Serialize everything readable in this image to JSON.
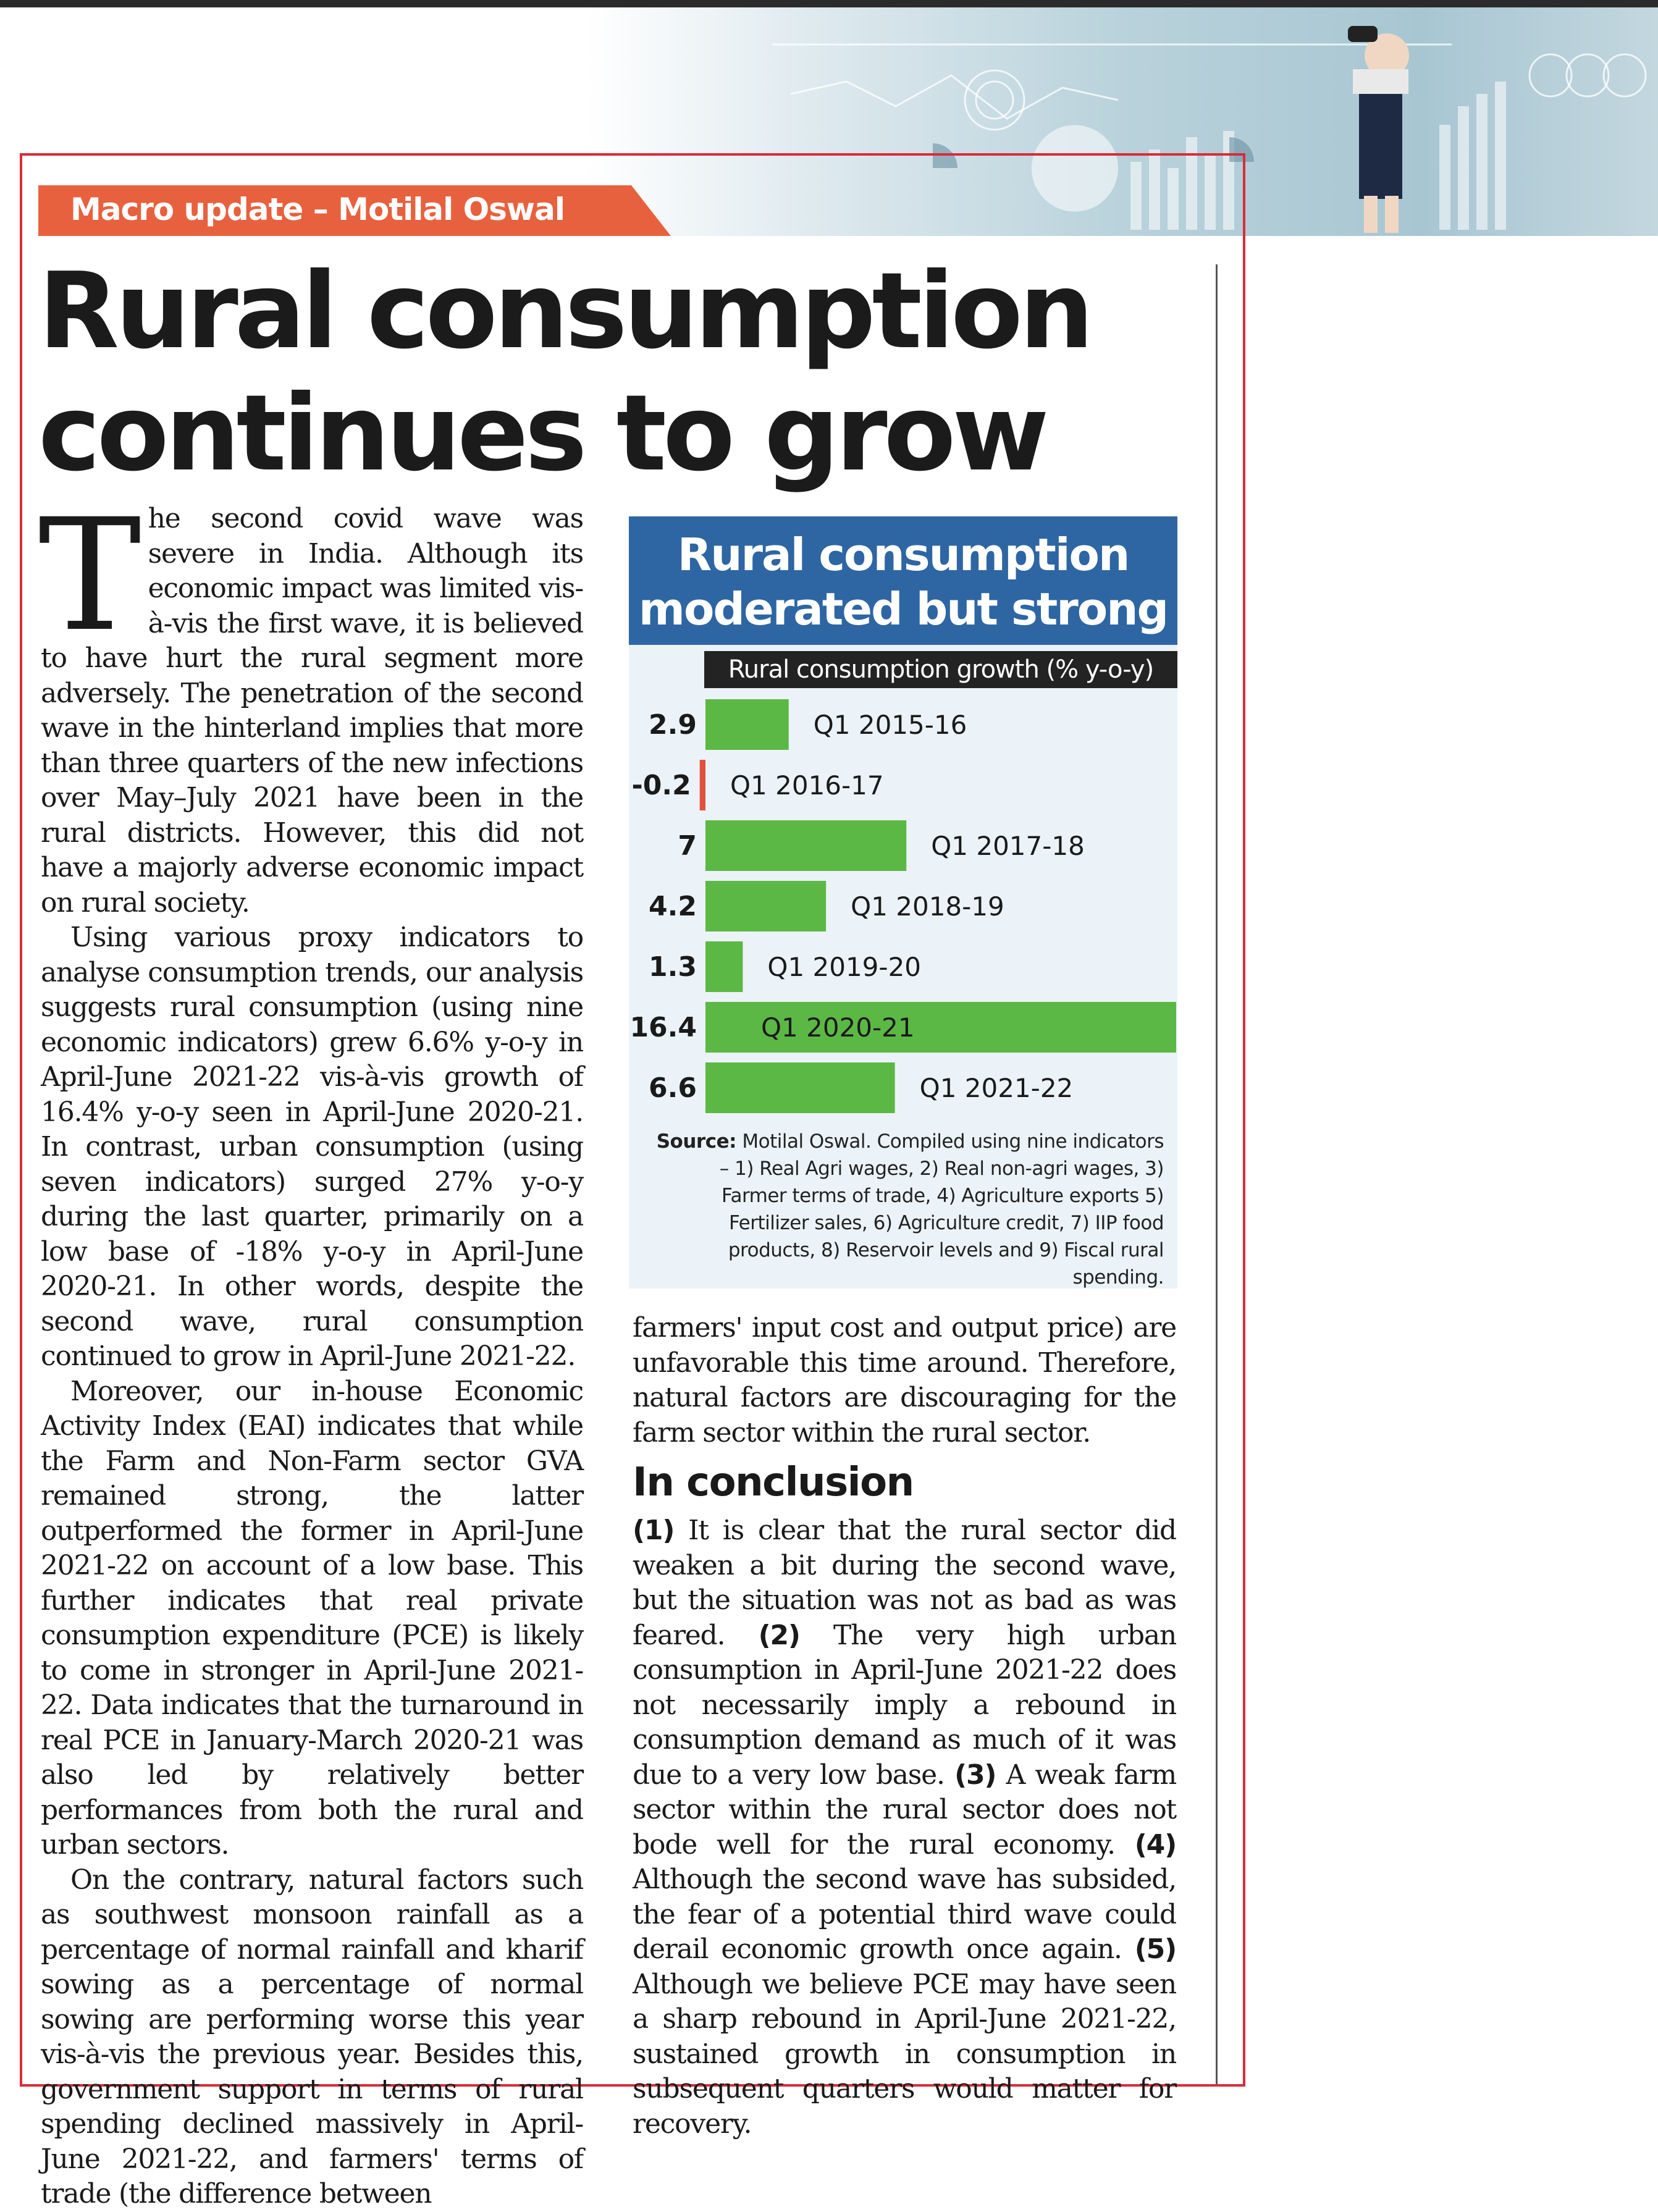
{
  "section_tag": "Macro update – Motilal Oswal",
  "headline": "Rural consumption continues to grow",
  "article": {
    "drop_cap": "T",
    "paragraphs": [
      "he second covid wave was severe in India. Although its economic impact was limited vis-à-vis the first wave, it is believed to have hurt the rural segment more adversely. The penetration of the second wave in the hinterland implies that more than three quarters of the new infections over May–July 2021 have been in the rural districts. However, this did not have a majorly adverse economic impact on rural society.",
      "Using various proxy indicators to analyse consumption trends, our analysis suggests rural consumption (using nine economic indicators) grew 6.6% y-o-y in April-June 2021-22 vis-à-vis growth of 16.4% y-o-y seen in April-June 2020-21. In contrast, urban consumption (using seven indicators) surged 27% y-o-y during the last quarter, primarily on a low base of -18% y-o-y in April-June 2020-21. In other words, despite the second wave, rural consumption continued to grow in April-June 2021-22.",
      "Moreover, our in-house Economic Activity Index (EAI) indicates that while the Farm and Non-Farm sector GVA remained strong, the latter outperformed the former in April-June 2021-22 on account of a low base. This further indicates that real private consumption expenditure (PCE) is likely to come in stronger in April-June 2021-22. Data indicates that the turnaround in real PCE in January-March 2020-21 was also led by relatively better performances from both the rural and urban sectors.",
      "On the contrary, natural factors such as southwest monsoon rainfall as a percentage of normal rainfall and kharif sowing as a percentage of normal sowing are performing worse this year vis-à-vis the previous year. Besides this, government support in terms of rural spending declined massively in April-June 2021-22, and farmers' terms of trade (the difference between"
    ],
    "continuation": "farmers' input cost and output price) are unfavorable this time around. Therefore, natural factors are discouraging for the farm sector within the rural sector.",
    "conclusion_heading": "In conclusion",
    "conclusion": [
      {
        "num": "(1)",
        "text": " It is clear that the rural sector did weaken a bit during the second wave, but the situation was not as bad as was feared. "
      },
      {
        "num": "(2)",
        "text": " The very high urban consumption in April-June 2021-22 does not necessarily imply a rebound in consumption demand as much of it was due to a very low base. "
      },
      {
        "num": "(3)",
        "text": " A weak farm sector within the rural sector does not bode well for the rural economy. "
      },
      {
        "num": "(4)",
        "text": " Although the second wave has subsided, the fear of a potential third wave could derail economic growth once again. "
      },
      {
        "num": "(5)",
        "text": " Although we believe PCE may have seen a sharp rebound in April-June 2021-22, sustained growth in consumption in subsequent quarters would matter for recovery."
      }
    ]
  },
  "chart_data": {
    "type": "bar",
    "orientation": "horizontal",
    "title": "Rural consumption moderated but strong",
    "subtitle": "Rural consumption growth (% y-o-y)",
    "categories": [
      "Q1 2015-16",
      "Q1 2016-17",
      "Q1 2017-18",
      "Q1 2018-19",
      "Q1 2019-20",
      "Q1 2020-21",
      "Q1 2021-22"
    ],
    "values": [
      2.9,
      -0.2,
      7,
      4.2,
      1.3,
      16.4,
      6.6
    ],
    "value_labels": [
      "2.9",
      "-0.2",
      "7",
      "4.2",
      "1.3",
      "16.4",
      "6.6"
    ],
    "xlim": [
      0,
      16.4
    ],
    "colors": {
      "positive": "#5cb845",
      "negative": "#e0513c"
    },
    "source_label": "Source:",
    "source_text": " Motilal Oswal. Compiled using nine indicators – 1) Real Agri wages, 2) Real non-agri wages, 3) Farmer terms of trade, 4) Agriculture exports 5) Fertilizer sales, 6) Agriculture credit, 7) IIP food products, 8) Reservoir levels and 9) Fiscal rural spending."
  }
}
